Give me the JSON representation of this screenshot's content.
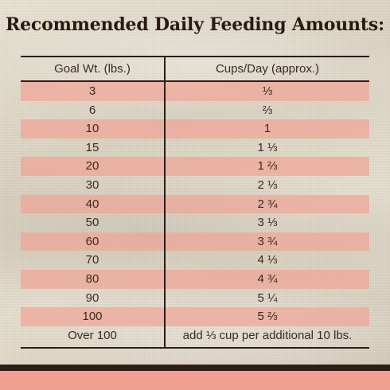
{
  "title": "Recommended Daily Feeding Amounts:",
  "table": {
    "headers": [
      "Goal Wt. (lbs.)",
      "Cups/Day (approx.)"
    ],
    "rows": [
      {
        "weight": "3",
        "cups": "⅓"
      },
      {
        "weight": "6",
        "cups": "⅔"
      },
      {
        "weight": "10",
        "cups": "1"
      },
      {
        "weight": "15",
        "cups": "1 ⅓"
      },
      {
        "weight": "20",
        "cups": "1 ⅔"
      },
      {
        "weight": "30",
        "cups": "2 ⅓"
      },
      {
        "weight": "40",
        "cups": "2 ¾"
      },
      {
        "weight": "50",
        "cups": "3 ⅓"
      },
      {
        "weight": "60",
        "cups": "3 ¾"
      },
      {
        "weight": "70",
        "cups": "4 ⅓"
      },
      {
        "weight": "80",
        "cups": "4 ¾"
      },
      {
        "weight": "90",
        "cups": "5 ¼"
      },
      {
        "weight": "100",
        "cups": "5 ⅔"
      },
      {
        "weight": "Over 100",
        "cups": "add ⅓ cup per additional 10 lbs."
      }
    ]
  },
  "colors": {
    "stripe": "#f0a596",
    "ink": "#2c1d17",
    "footer_coral": "#f2a091"
  }
}
